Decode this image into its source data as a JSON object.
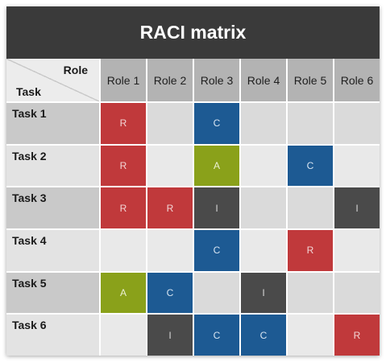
{
  "title": "RACI matrix",
  "corner": {
    "column_axis_label": "Role",
    "row_axis_label": "Task"
  },
  "roles": [
    "Role 1",
    "Role 2",
    "Role 3",
    "Role 4",
    "Role 5",
    "Role 6"
  ],
  "tasks": [
    {
      "name": "Task 1",
      "cells": [
        "R",
        "",
        "C",
        "",
        "",
        ""
      ]
    },
    {
      "name": "Task 2",
      "cells": [
        "R",
        "",
        "A",
        "",
        "C",
        ""
      ]
    },
    {
      "name": "Task 3",
      "cells": [
        "R",
        "R",
        "I",
        "",
        "",
        "I"
      ]
    },
    {
      "name": "Task 4",
      "cells": [
        "",
        "",
        "C",
        "",
        "R",
        ""
      ]
    },
    {
      "name": "Task 5",
      "cells": [
        "A",
        "C",
        "",
        "I",
        "",
        ""
      ]
    },
    {
      "name": "Task 6",
      "cells": [
        "",
        "I",
        "C",
        "C",
        "",
        "R"
      ]
    }
  ],
  "colors": {
    "title_bar": "#3a3a3a",
    "R": "#c0393b",
    "A": "#8aa11a",
    "C": "#1d5a93",
    "I": "#4a4a4a",
    "header": "#b3b3b3"
  }
}
